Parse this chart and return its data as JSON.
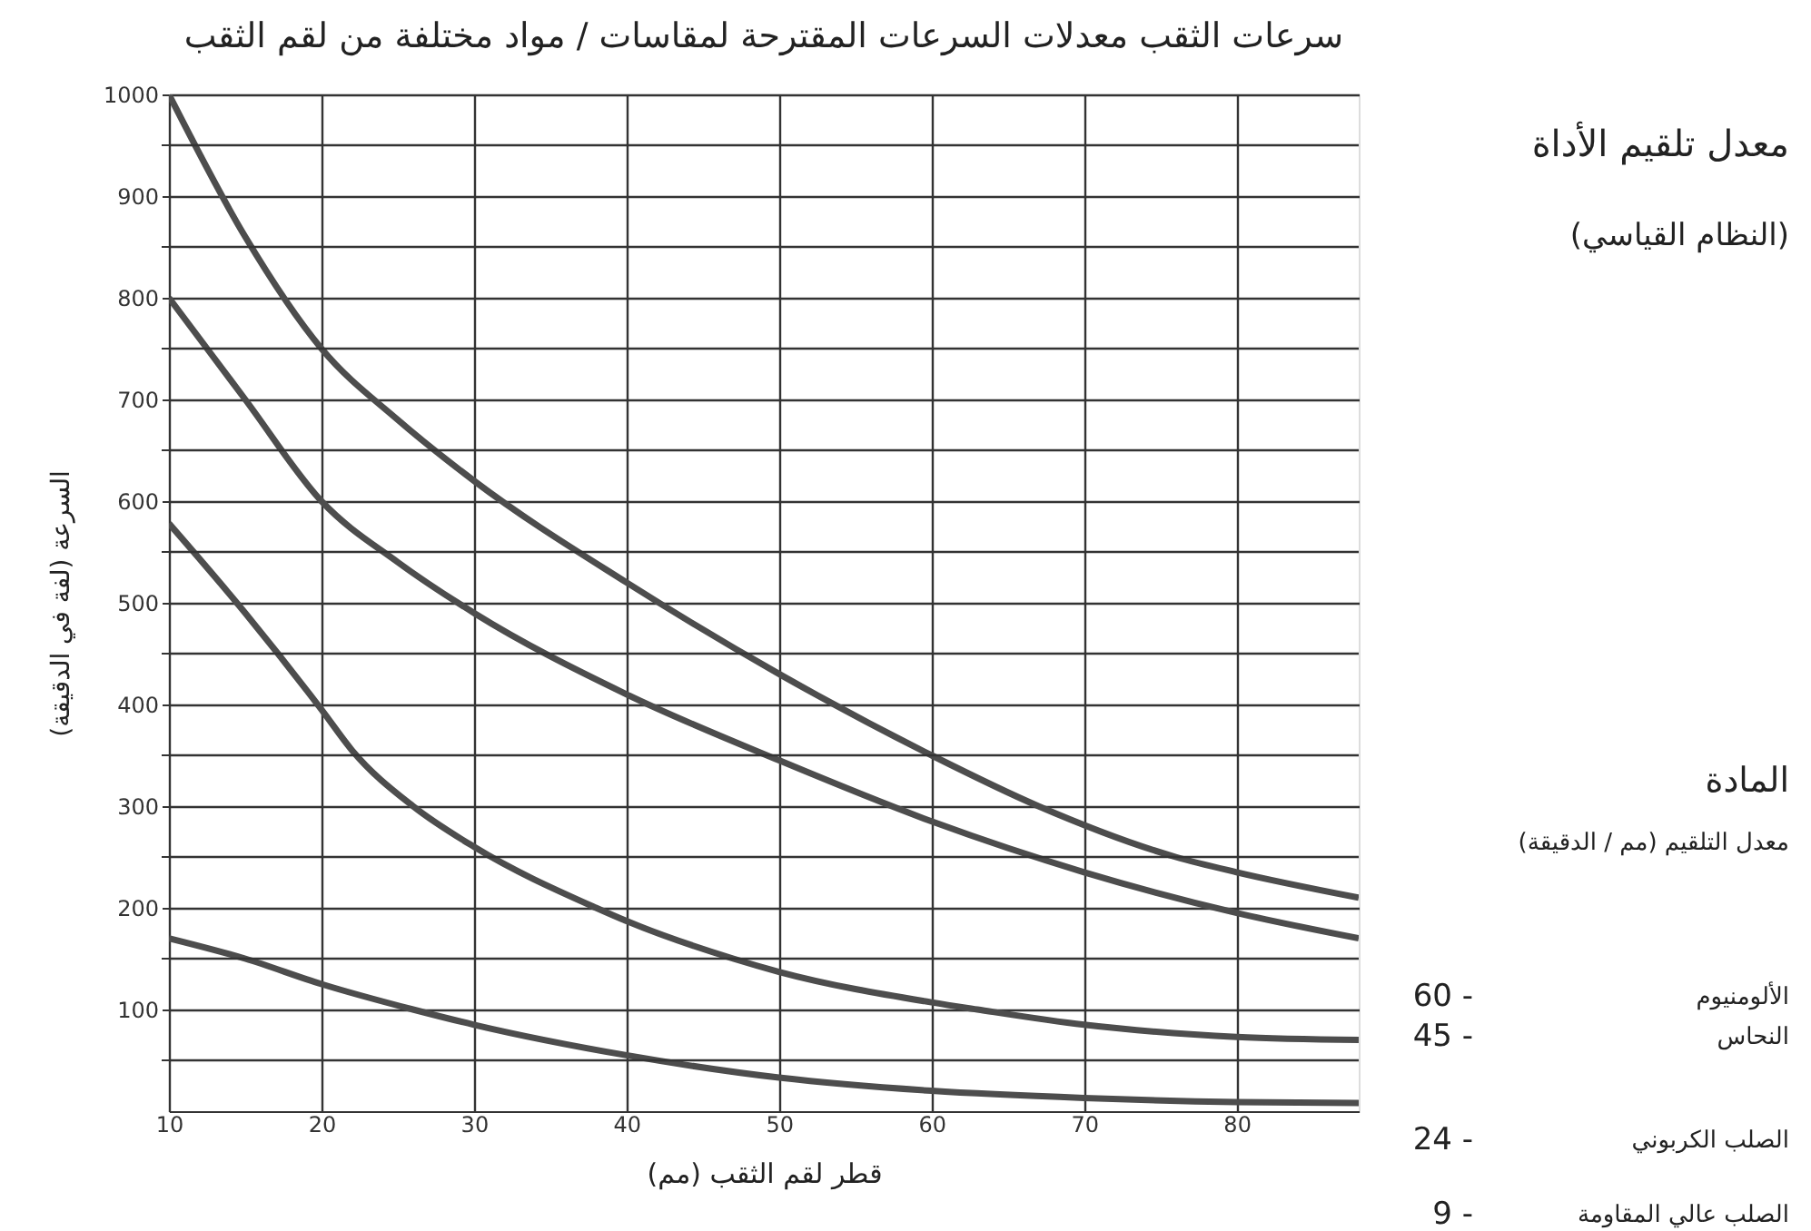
{
  "chart_data": {
    "type": "line",
    "title": "سرعات الثقب معدلات السرعات المقترحة لمقاسات / مواد مختلفة من لقم الثقب",
    "xlabel": "قطر لقم الثقب (مم)",
    "ylabel": "السرعة (لفة في الدقيقة)",
    "xlim": [
      10,
      88
    ],
    "xticks": [
      10,
      20,
      30,
      40,
      50,
      60,
      70,
      80
    ],
    "ylim": [
      0,
      1000
    ],
    "yticks": [
      {
        "value": 50,
        "label": null
      },
      100,
      {
        "value": 150,
        "label": null
      },
      200,
      {
        "value": 250,
        "label": null
      },
      300,
      {
        "value": 350,
        "label": null
      },
      400,
      {
        "value": 450,
        "label": null
      },
      500,
      {
        "value": 550,
        "label": null
      },
      600,
      {
        "value": 650,
        "label": null
      },
      700,
      {
        "value": 750,
        "label": null
      },
      800,
      {
        "value": 850,
        "label": null
      },
      900,
      {
        "value": 950,
        "label": null
      },
      1000
    ],
    "grid": true,
    "line_style": "solid",
    "marker": "none",
    "series": [
      {
        "color": "#4d4d4d",
        "x": [
          10,
          15,
          20,
          25,
          30,
          40,
          50,
          60,
          67,
          76,
          80,
          88
        ],
        "values": [
          1000,
          860,
          750,
          680,
          620,
          520,
          430,
          350,
          300,
          250,
          235,
          210
        ]
      },
      {
        "color": "#4d4d4d",
        "x": [
          10,
          15,
          20,
          25,
          30,
          40,
          50,
          60,
          70,
          80,
          88
        ],
        "values": [
          800,
          700,
          600,
          540,
          490,
          410,
          345,
          285,
          235,
          195,
          170
        ]
      },
      {
        "color": "#4d4d4d",
        "x": [
          10,
          15,
          20,
          22,
          26,
          30,
          38,
          40,
          47,
          50,
          60,
          63,
          70,
          80,
          88
        ],
        "values": [
          578,
          490,
          395,
          355,
          300,
          260,
          200,
          187,
          150,
          137,
          107,
          100,
          85,
          73,
          70
        ]
      },
      {
        "color": "#4d4d4d",
        "x": [
          10,
          15,
          20,
          26,
          30,
          40,
          50,
          60,
          70,
          80,
          88
        ],
        "values": [
          170,
          150,
          125,
          100,
          85,
          55,
          33,
          20,
          13,
          9,
          8
        ]
      }
    ],
    "annotations": [
      "معدل تلقيم الأداة",
      "(النظام القياسي)",
      "المادة",
      "معدل التلقيم (مم / الدقيقة)",
      "60 -",
      "الألومنيوم",
      "45 -",
      "النحاس",
      "24 -",
      "الصلب الكربوني",
      "9 -",
      "الصلب عالي المقاومة"
    ]
  }
}
